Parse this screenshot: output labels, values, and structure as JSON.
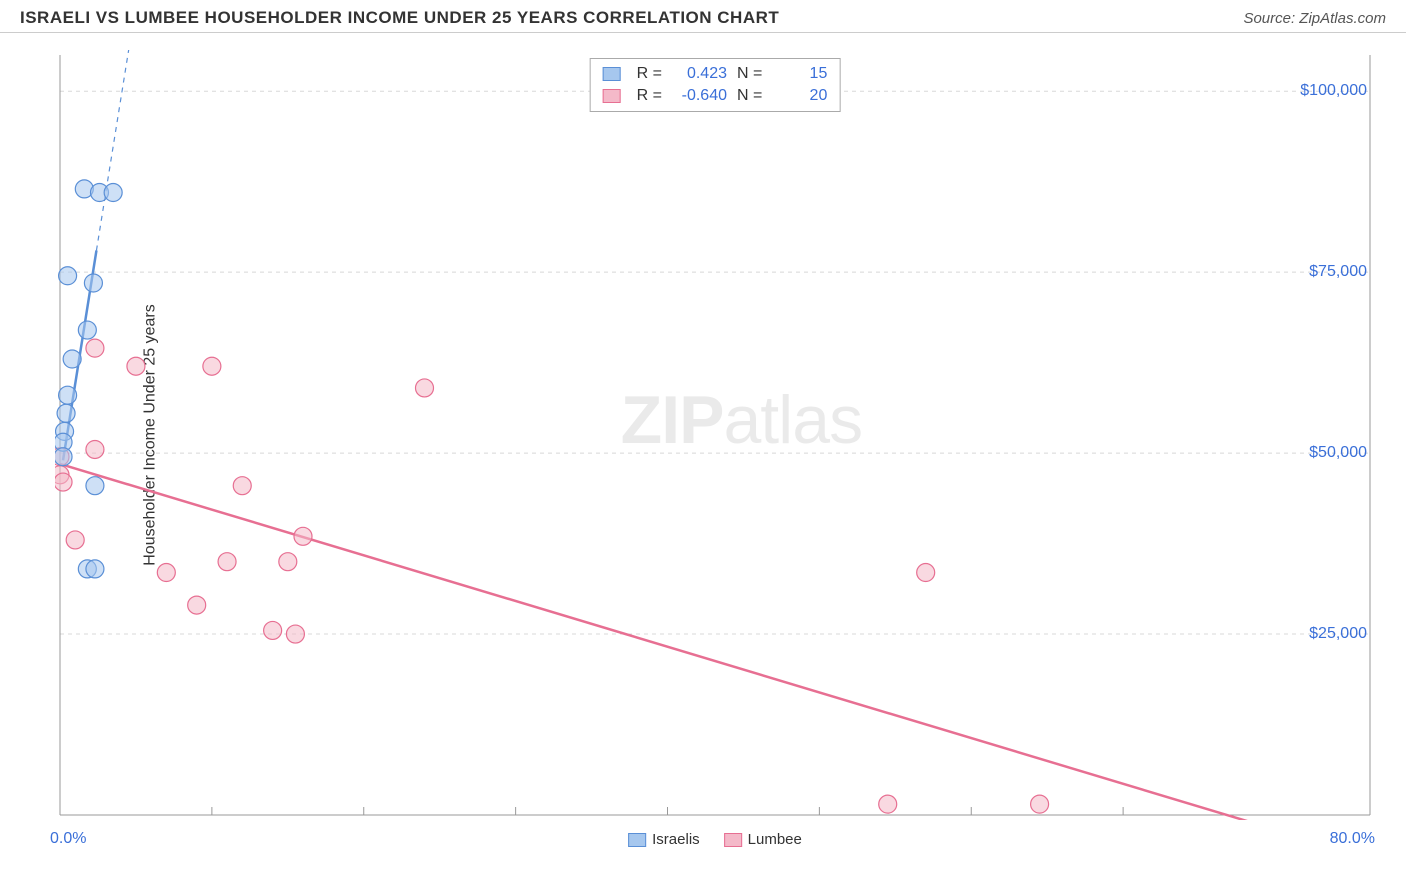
{
  "header": {
    "title": "ISRAELI VS LUMBEE HOUSEHOLDER INCOME UNDER 25 YEARS CORRELATION CHART",
    "source": "Source: ZipAtlas.com"
  },
  "chart": {
    "type": "scatter",
    "ylabel": "Householder Income Under 25 years",
    "xlim": [
      0,
      80
    ],
    "ylim": [
      0,
      105000
    ],
    "x_tick_labels": {
      "min": "0.0%",
      "max": "80.0%"
    },
    "x_ticks": [
      0,
      10,
      20,
      30,
      40,
      50,
      60,
      70,
      80
    ],
    "y_ticks": [
      {
        "v": 25000,
        "label": "$25,000"
      },
      {
        "v": 50000,
        "label": "$50,000"
      },
      {
        "v": 75000,
        "label": "$75,000"
      },
      {
        "v": 100000,
        "label": "$100,000"
      }
    ],
    "grid_color": "#d8d8d8",
    "axis_color": "#999999",
    "background_color": "#ffffff",
    "watermark": {
      "zip": "ZIP",
      "atlas": "atlas"
    },
    "series": {
      "israelis": {
        "label": "Israelis",
        "color_fill": "#a6c7ee",
        "color_stroke": "#5a8fd6",
        "marker_radius": 9,
        "fill_opacity": 0.55,
        "R": "0.423",
        "N": "15",
        "points": [
          {
            "x": 1.6,
            "y": 86500
          },
          {
            "x": 2.6,
            "y": 86000
          },
          {
            "x": 3.5,
            "y": 86000
          },
          {
            "x": 0.5,
            "y": 74500
          },
          {
            "x": 2.2,
            "y": 73500
          },
          {
            "x": 1.8,
            "y": 67000
          },
          {
            "x": 0.8,
            "y": 63000
          },
          {
            "x": 0.5,
            "y": 58000
          },
          {
            "x": 0.4,
            "y": 55500
          },
          {
            "x": 0.3,
            "y": 53000
          },
          {
            "x": 0.2,
            "y": 51500
          },
          {
            "x": 0.2,
            "y": 49500
          },
          {
            "x": 2.3,
            "y": 45500
          },
          {
            "x": 1.8,
            "y": 34000
          },
          {
            "x": 2.3,
            "y": 34000
          }
        ],
        "trend": {
          "x1": 0.2,
          "y1": 49000,
          "x2": 2.4,
          "y2": 78000,
          "dash_x2": 6.0,
          "dash_y2": 125000,
          "width": 2.5
        }
      },
      "lumbee": {
        "label": "Lumbee",
        "color_fill": "#f4b9c9",
        "color_stroke": "#e76f92",
        "marker_radius": 9,
        "fill_opacity": 0.55,
        "R": "-0.640",
        "N": "20",
        "points": [
          {
            "x": 2.3,
            "y": 64500
          },
          {
            "x": 5.0,
            "y": 62000
          },
          {
            "x": 10.0,
            "y": 62000
          },
          {
            "x": 24.0,
            "y": 59000
          },
          {
            "x": 0.0,
            "y": 49500
          },
          {
            "x": 2.3,
            "y": 50500
          },
          {
            "x": 0.0,
            "y": 47000
          },
          {
            "x": 0.2,
            "y": 46000
          },
          {
            "x": 12.0,
            "y": 45500
          },
          {
            "x": 1.0,
            "y": 38000
          },
          {
            "x": 16.0,
            "y": 38500
          },
          {
            "x": 7.0,
            "y": 33500
          },
          {
            "x": 11.0,
            "y": 35000
          },
          {
            "x": 15.0,
            "y": 35000
          },
          {
            "x": 9.0,
            "y": 29000
          },
          {
            "x": 14.0,
            "y": 25500
          },
          {
            "x": 15.5,
            "y": 25000
          },
          {
            "x": 54.5,
            "y": 1500
          },
          {
            "x": 64.5,
            "y": 1500
          },
          {
            "x": 57.0,
            "y": 33500
          }
        ],
        "trend": {
          "x1": 0.0,
          "y1": 48500,
          "x2": 80.0,
          "y2": -2000,
          "width": 2.5
        }
      }
    },
    "bottom_legend": [
      "Israelis",
      "Lumbee"
    ],
    "stats_label_R": "R =",
    "stats_label_N": "N ="
  }
}
